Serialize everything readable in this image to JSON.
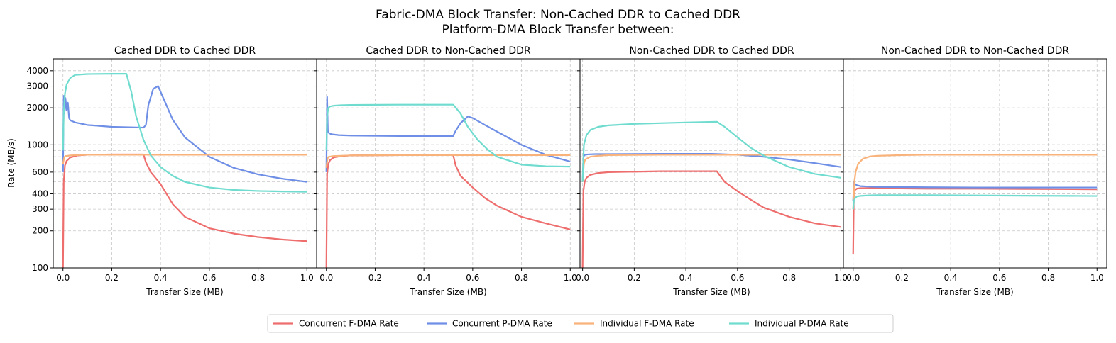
{
  "figure": {
    "title_line1": "Fabric-DMA Block Transfer: Non-Cached DDR to Cached DDR",
    "title_line2": "Platform-DMA Block Transfer between:",
    "ylabel": "Rate (MB/s)"
  },
  "colors": {
    "concurrent_fdma": "#ee6e6e",
    "concurrent_pdma": "#6f8fe6",
    "individual_fdma": "#f9b27a",
    "individual_pdma": "#6fdccf"
  },
  "chart_data": [
    {
      "type": "line",
      "title": "Cached DDR to Cached DDR",
      "xlabel": "Transfer Size (MB)",
      "ylabel": "Rate (MB/s)",
      "xlim": [
        -0.04,
        1.04
      ],
      "ylim": [
        100,
        5000
      ],
      "yscale": "log",
      "xticks": [
        "0.0",
        "0.2",
        "0.4",
        "0.6",
        "0.8",
        "1.0"
      ],
      "yticks": [
        "100",
        "200",
        "300",
        "400",
        "600",
        "1000",
        "2000",
        "3000",
        "4000"
      ],
      "reference_line": 1000,
      "grid": true,
      "series": [
        {
          "name": "Concurrent F-DMA Rate",
          "color": "#ee6e6e",
          "x": [
            0.0,
            0.003,
            0.008,
            0.015,
            0.03,
            0.06,
            0.1,
            0.2,
            0.33,
            0.34,
            0.36,
            0.4,
            0.45,
            0.5,
            0.6,
            0.7,
            0.8,
            0.9,
            1.0
          ],
          "y": [
            100,
            500,
            680,
            740,
            790,
            820,
            830,
            835,
            835,
            720,
            600,
            480,
            330,
            260,
            210,
            190,
            178,
            170,
            165
          ]
        },
        {
          "name": "Concurrent P-DMA Rate",
          "color": "#6f8fe6",
          "x": [
            0.0,
            0.003,
            0.006,
            0.01,
            0.015,
            0.02,
            0.025,
            0.03,
            0.05,
            0.1,
            0.2,
            0.33,
            0.34,
            0.35,
            0.37,
            0.39,
            0.4,
            0.45,
            0.5,
            0.6,
            0.7,
            0.8,
            0.9,
            1.0
          ],
          "y": [
            600,
            2500,
            1800,
            2400,
            1900,
            2200,
            1650,
            1580,
            1520,
            1450,
            1400,
            1380,
            1450,
            2100,
            2850,
            3000,
            2700,
            1600,
            1150,
            800,
            650,
            575,
            530,
            500
          ]
        },
        {
          "name": "Individual F-DMA Rate",
          "color": "#f9b27a",
          "x": [
            0.0,
            0.005,
            0.01,
            0.03,
            0.06,
            0.1,
            0.2,
            0.4,
            0.6,
            0.8,
            1.0
          ],
          "y": [
            700,
            790,
            810,
            820,
            825,
            830,
            830,
            830,
            830,
            830,
            830
          ]
        },
        {
          "name": "Individual P-DMA Rate",
          "color": "#6fdccf",
          "x": [
            0.0,
            0.003,
            0.008,
            0.015,
            0.03,
            0.05,
            0.1,
            0.2,
            0.26,
            0.28,
            0.3,
            0.33,
            0.36,
            0.4,
            0.45,
            0.5,
            0.6,
            0.7,
            0.8,
            0.9,
            1.0
          ],
          "y": [
            900,
            1800,
            2600,
            3100,
            3500,
            3700,
            3760,
            3780,
            3780,
            2700,
            1700,
            1100,
            820,
            660,
            560,
            500,
            450,
            430,
            422,
            418,
            415
          ]
        }
      ]
    },
    {
      "type": "line",
      "title": "Cached DDR to Non-Cached DDR",
      "xlabel": "Transfer Size (MB)",
      "xlim": [
        -0.04,
        1.04
      ],
      "ylim": [
        100,
        5000
      ],
      "yscale": "log",
      "xticks": [
        "0.0",
        "0.2",
        "0.4",
        "0.6",
        "0.8",
        "1.0"
      ],
      "reference_line": 1000,
      "grid": true,
      "series": [
        {
          "name": "Concurrent F-DMA Rate",
          "color": "#ee6e6e",
          "x": [
            0.0,
            0.003,
            0.008,
            0.015,
            0.03,
            0.06,
            0.1,
            0.3,
            0.52,
            0.53,
            0.55,
            0.6,
            0.65,
            0.7,
            0.8,
            0.9,
            1.0
          ],
          "y": [
            100,
            580,
            700,
            750,
            790,
            810,
            820,
            825,
            825,
            680,
            560,
            450,
            370,
            320,
            260,
            230,
            205
          ]
        },
        {
          "name": "Concurrent P-DMA Rate",
          "color": "#6f8fe6",
          "x": [
            0.0,
            0.003,
            0.006,
            0.01,
            0.02,
            0.05,
            0.1,
            0.3,
            0.52,
            0.53,
            0.55,
            0.58,
            0.6,
            0.65,
            0.7,
            0.8,
            0.9,
            1.0
          ],
          "y": [
            600,
            2450,
            1300,
            1250,
            1220,
            1200,
            1190,
            1180,
            1180,
            1300,
            1500,
            1700,
            1650,
            1450,
            1280,
            1000,
            830,
            730
          ]
        },
        {
          "name": "Individual F-DMA Rate",
          "color": "#f9b27a",
          "x": [
            0.0,
            0.005,
            0.01,
            0.03,
            0.06,
            0.1,
            0.3,
            0.5,
            0.7,
            0.9,
            1.0
          ],
          "y": [
            650,
            780,
            800,
            810,
            815,
            820,
            825,
            825,
            825,
            825,
            825
          ]
        },
        {
          "name": "Individual P-DMA Rate",
          "color": "#6fdccf",
          "x": [
            0.0,
            0.003,
            0.008,
            0.015,
            0.03,
            0.06,
            0.1,
            0.3,
            0.52,
            0.55,
            0.58,
            0.62,
            0.66,
            0.7,
            0.8,
            0.9,
            1.0
          ],
          "y": [
            900,
            1700,
            2000,
            2050,
            2080,
            2100,
            2110,
            2120,
            2120,
            1800,
            1400,
            1100,
            920,
            800,
            690,
            670,
            665
          ]
        }
      ]
    },
    {
      "type": "line",
      "title": "Non-Cached DDR to Cached DDR",
      "xlabel": "Transfer Size (MB)",
      "xlim": [
        -0.01,
        1.01
      ],
      "ylim": [
        100,
        5000
      ],
      "yscale": "log",
      "xticks": [
        "0.0",
        "0.2",
        "0.4",
        "0.6",
        "0.8",
        "1.0"
      ],
      "reference_line": 1000,
      "grid": true,
      "series": [
        {
          "name": "Concurrent F-DMA Rate",
          "color": "#ee6e6e",
          "x": [
            0.0,
            0.003,
            0.008,
            0.015,
            0.03,
            0.06,
            0.1,
            0.3,
            0.52,
            0.53,
            0.55,
            0.6,
            0.65,
            0.7,
            0.8,
            0.9,
            1.0
          ],
          "y": [
            100,
            420,
            500,
            540,
            570,
            590,
            600,
            610,
            610,
            570,
            500,
            420,
            360,
            310,
            260,
            230,
            215
          ]
        },
        {
          "name": "Concurrent P-DMA Rate",
          "color": "#6f8fe6",
          "x": [
            0.0,
            0.003,
            0.006,
            0.01,
            0.02,
            0.05,
            0.1,
            0.3,
            0.5,
            0.6,
            0.7,
            0.8,
            0.9,
            1.0
          ],
          "y": [
            500,
            780,
            820,
            830,
            835,
            840,
            840,
            845,
            845,
            830,
            800,
            760,
            710,
            660
          ]
        },
        {
          "name": "Individual F-DMA Rate",
          "color": "#f9b27a",
          "x": [
            0.0,
            0.005,
            0.01,
            0.03,
            0.06,
            0.1,
            0.3,
            0.5,
            0.7,
            0.9,
            1.0
          ],
          "y": [
            500,
            700,
            760,
            800,
            815,
            825,
            830,
            830,
            830,
            830,
            830
          ]
        },
        {
          "name": "Individual P-DMA Rate",
          "color": "#6fdccf",
          "x": [
            0.0,
            0.005,
            0.015,
            0.03,
            0.06,
            0.1,
            0.2,
            0.3,
            0.4,
            0.52,
            0.55,
            0.6,
            0.65,
            0.7,
            0.8,
            0.9,
            1.0
          ],
          "y": [
            500,
            1000,
            1200,
            1320,
            1400,
            1440,
            1480,
            1500,
            1520,
            1540,
            1400,
            1150,
            950,
            820,
            660,
            580,
            540
          ]
        }
      ]
    },
    {
      "type": "line",
      "title": "Non-Cached DDR to Non-Cached DDR",
      "xlabel": "Transfer Size (MB)",
      "xlim": [
        -0.04,
        1.04
      ],
      "ylim": [
        100,
        5000
      ],
      "yscale": "log",
      "xticks": [
        "0.0",
        "0.2",
        "0.4",
        "0.6",
        "0.8",
        "1.0"
      ],
      "reference_line": 1000,
      "grid": true,
      "series": [
        {
          "name": "Concurrent F-DMA Rate",
          "color": "#ee6e6e",
          "x": [
            0.0,
            0.003,
            0.008,
            0.015,
            0.03,
            0.06,
            0.1,
            0.3,
            0.5,
            0.7,
            0.9,
            1.0
          ],
          "y": [
            130,
            400,
            430,
            440,
            445,
            445,
            445,
            440,
            440,
            438,
            436,
            435
          ]
        },
        {
          "name": "Concurrent P-DMA Rate",
          "color": "#6f8fe6",
          "x": [
            0.0,
            0.003,
            0.008,
            0.015,
            0.03,
            0.06,
            0.1,
            0.3,
            0.5,
            0.7,
            0.9,
            1.0
          ],
          "y": [
            350,
            500,
            480,
            470,
            462,
            458,
            455,
            452,
            450,
            450,
            450,
            450
          ]
        },
        {
          "name": "Individual F-DMA Rate",
          "color": "#f9b27a",
          "x": [
            0.0,
            0.005,
            0.01,
            0.02,
            0.04,
            0.07,
            0.1,
            0.2,
            0.3,
            0.5,
            0.7,
            0.9,
            1.0
          ],
          "y": [
            300,
            500,
            600,
            700,
            770,
            805,
            815,
            825,
            830,
            830,
            830,
            830,
            830
          ]
        },
        {
          "name": "Individual P-DMA Rate",
          "color": "#6fdccf",
          "x": [
            0.0,
            0.003,
            0.008,
            0.015,
            0.03,
            0.06,
            0.1,
            0.3,
            0.5,
            0.7,
            0.9,
            1.0
          ],
          "y": [
            300,
            350,
            370,
            380,
            385,
            388,
            390,
            390,
            388,
            386,
            385,
            384
          ]
        }
      ]
    }
  ],
  "legend": {
    "placement": "bottom-center",
    "items": [
      {
        "label": "Concurrent F-DMA Rate",
        "color": "#ee6e6e"
      },
      {
        "label": "Concurrent P-DMA Rate",
        "color": "#6f8fe6"
      },
      {
        "label": "Individual F-DMA Rate",
        "color": "#f9b27a"
      },
      {
        "label": "Individual P-DMA Rate",
        "color": "#6fdccf"
      }
    ]
  }
}
